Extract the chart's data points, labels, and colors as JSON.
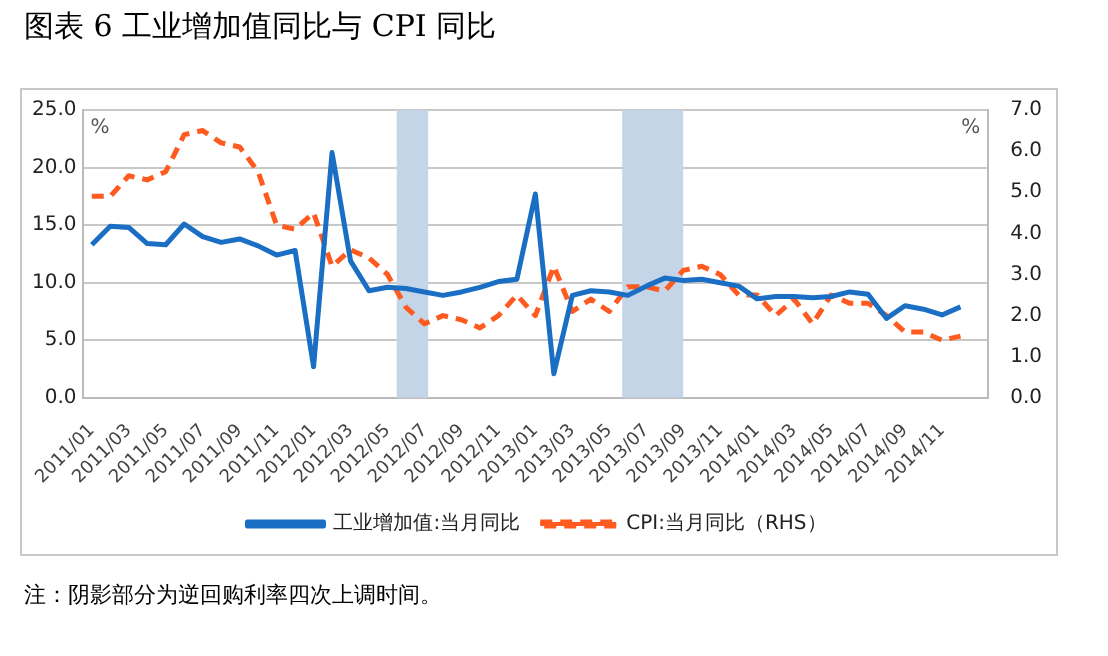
{
  "chart_data": {
    "type": "line",
    "title": "图表 6 工业增加值同比与 CPI 同比",
    "ylabel": "%",
    "y2label": "%",
    "annotations": [
      "注：阴影部分为逆回购利率四次上调时间。"
    ],
    "x": [
      "2011-01",
      "2011-02",
      "2011-03",
      "2011-04",
      "2011-05",
      "2011-06",
      "2011-07",
      "2011-08",
      "2011-09",
      "2011-10",
      "2011-11",
      "2011-12",
      "2012-01",
      "2012-02",
      "2012-03",
      "2012-04",
      "2012-05",
      "2012-06",
      "2012-07",
      "2012-08",
      "2012-09",
      "2012-10",
      "2012-11",
      "2012-12",
      "2013-01",
      "2013-02",
      "2013-03",
      "2013-04",
      "2013-05",
      "2013-06",
      "2013-07",
      "2013-08",
      "2013-09",
      "2013-10",
      "2013-11",
      "2013-12",
      "2014-01",
      "2014-02",
      "2014-03",
      "2014-04",
      "2014-05",
      "2014-06",
      "2014-07",
      "2014-08",
      "2014-09",
      "2014-10",
      "2014-11",
      "2014-12"
    ],
    "series": [
      {
        "name": "工业增加值:当月同比",
        "color": "#1a6fc4",
        "line_style": "solid",
        "values": [
          13.3,
          14.9,
          14.8,
          13.4,
          13.3,
          15.1,
          14.0,
          13.5,
          13.8,
          13.2,
          12.4,
          12.8,
          2.7,
          21.3,
          11.9,
          9.3,
          9.6,
          9.5,
          9.2,
          8.9,
          9.2,
          9.6,
          10.1,
          10.3,
          17.7,
          2.1,
          8.9,
          9.3,
          9.2,
          8.9,
          9.7,
          10.4,
          10.2,
          10.3,
          10.0,
          9.7,
          8.6,
          8.8,
          8.8,
          8.7,
          8.8,
          9.2,
          9.0,
          6.9,
          8.0,
          7.7,
          7.2,
          7.9
        ]
      },
      {
        "name": "CPI:当月同比（RHS）",
        "color": "#ff5a1f",
        "line_style": "dashed",
        "axis": "y2",
        "values": [
          4.9,
          4.9,
          5.4,
          5.3,
          5.5,
          6.4,
          6.5,
          6.2,
          6.1,
          5.5,
          4.2,
          4.1,
          4.5,
          3.2,
          3.6,
          3.4,
          3.0,
          2.2,
          1.8,
          2.0,
          1.9,
          1.7,
          2.0,
          2.5,
          2.0,
          3.2,
          2.1,
          2.4,
          2.1,
          2.7,
          2.7,
          2.6,
          3.1,
          3.2,
          3.0,
          2.5,
          2.5,
          2.0,
          2.4,
          1.8,
          2.5,
          2.3,
          2.3,
          2.0,
          1.6,
          1.6,
          1.4,
          1.5
        ]
      }
    ],
    "xlim": [
      "2010-12-16",
      "2015-01-16"
    ],
    "xticks": [
      {
        "value": "2011-01",
        "label": "2011/01"
      },
      {
        "value": "2011-03",
        "label": "2011/03"
      },
      {
        "value": "2011-05",
        "label": "2011/05"
      },
      {
        "value": "2011-07",
        "label": "2011/07"
      },
      {
        "value": "2011-09",
        "label": "2011/09"
      },
      {
        "value": "2011-11",
        "label": "2011/11"
      },
      {
        "value": "2012-01",
        "label": "2012/01"
      },
      {
        "value": "2012-03",
        "label": "2012/03"
      },
      {
        "value": "2012-05",
        "label": "2012/05"
      },
      {
        "value": "2012-07",
        "label": "2012/07"
      },
      {
        "value": "2012-09",
        "label": "2012/09"
      },
      {
        "value": "2012-11",
        "label": "2012/11"
      },
      {
        "value": "2013-01",
        "label": "2013/01"
      },
      {
        "value": "2013-03",
        "label": "2013/03"
      },
      {
        "value": "2013-05",
        "label": "2013/05"
      },
      {
        "value": "2013-07",
        "label": "2013/07"
      },
      {
        "value": "2013-09",
        "label": "2013/09"
      },
      {
        "value": "2013-11",
        "label": "2013/11"
      },
      {
        "value": "2014-01",
        "label": "2014/01"
      },
      {
        "value": "2014-03",
        "label": "2014/03"
      },
      {
        "value": "2014-05",
        "label": "2014/05"
      },
      {
        "value": "2014-07",
        "label": "2014/07"
      },
      {
        "value": "2014-09",
        "label": "2014/09"
      },
      {
        "value": "2014-11",
        "label": "2014/11"
      }
    ],
    "ylim": [
      0,
      25
    ],
    "yticks": [
      {
        "value": 0,
        "label": "0.0"
      },
      {
        "value": 5,
        "label": "5.0"
      },
      {
        "value": 10,
        "label": "10.0"
      },
      {
        "value": 15,
        "label": "15.0"
      },
      {
        "value": 20,
        "label": "20.0"
      },
      {
        "value": 25,
        "label": "25.0"
      }
    ],
    "y2lim": [
      0,
      7
    ],
    "y2ticks": [
      {
        "value": 0,
        "label": "0.0"
      },
      {
        "value": 1,
        "label": "1.0"
      },
      {
        "value": 2,
        "label": "2.0"
      },
      {
        "value": 3,
        "label": "3.0"
      },
      {
        "value": 4,
        "label": "4.0"
      },
      {
        "value": 5,
        "label": "5.0"
      },
      {
        "value": 6,
        "label": "6.0"
      },
      {
        "value": 7,
        "label": "7.0"
      }
    ],
    "bands": [
      {
        "axis": "x",
        "from": "2012-05-16",
        "to": "2012-07-07",
        "color": "#c5d5e8"
      },
      {
        "axis": "x",
        "from": "2013-05-22",
        "to": "2013-09-01",
        "color": "#c5d5e8"
      }
    ],
    "grid": "y",
    "legend": "bottom",
    "marker": "none"
  }
}
